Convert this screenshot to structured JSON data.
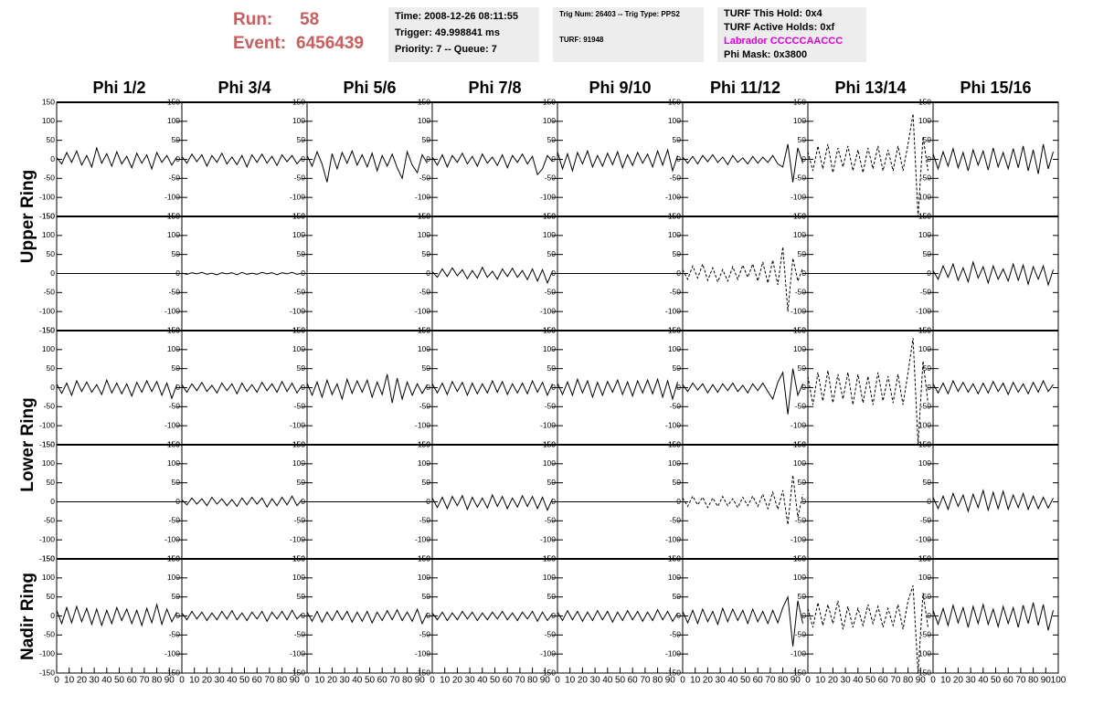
{
  "header": {
    "run_label": "Run:",
    "run": 58,
    "event_label": "Event:",
    "event": 6456439,
    "info_boxes": [
      [
        "Time: 2008-12-26 08:11:55",
        "Trigger: 49.998841 ms",
        "Priority: 7 -- Queue: 7"
      ],
      [
        "Trig Num: 26403 -- Trig Type: PPS2",
        "TURF: 91948"
      ],
      [
        "TURF This Hold: 0x4",
        "TURF Active Holds: 0xf",
        "Labrador CCCCCAACCC",
        "Phi Mask: 0x3800"
      ]
    ]
  },
  "columns": [
    "Phi 1/2",
    "Phi 3/4",
    "Phi 5/6",
    "Phi 7/8",
    "Phi 9/10",
    "Phi 11/12",
    "Phi 13/14",
    "Phi 15/16"
  ],
  "rows": [
    "Upper Ring",
    "Lower Ring",
    "Nadir Ring"
  ],
  "chart_data": {
    "type": "line",
    "color": "#000000",
    "xlim": [
      0,
      100
    ],
    "ylim": [
      -150,
      150
    ],
    "xticks": [
      0,
      10,
      20,
      30,
      40,
      50,
      60,
      70,
      80,
      90,
      100
    ],
    "yticks": [
      -150,
      -100,
      -50,
      0,
      50,
      100,
      150
    ],
    "x": [
      0,
      4,
      8,
      12,
      16,
      20,
      24,
      28,
      32,
      36,
      40,
      44,
      48,
      52,
      56,
      60,
      64,
      68,
      72,
      76,
      80,
      84,
      88,
      92,
      96
    ],
    "panels": [
      {
        "line_style": "solid",
        "values": [
          5,
          -12,
          18,
          -8,
          22,
          -15,
          10,
          -20,
          30,
          -10,
          15,
          -18,
          20,
          -12,
          8,
          -22,
          16,
          -10,
          12,
          -25,
          18,
          -8,
          10,
          -15,
          6
        ]
      },
      {
        "line_style": "solid",
        "values": [
          8,
          -10,
          14,
          -6,
          12,
          -18,
          10,
          -8,
          16,
          -12,
          6,
          -14,
          10,
          -20,
          12,
          -8,
          14,
          -10,
          8,
          -16,
          12,
          -6,
          10,
          -12,
          4
        ]
      },
      {
        "line_style": "solid",
        "values": [
          10,
          -18,
          20,
          -12,
          -60,
          15,
          -25,
          18,
          -10,
          22,
          -15,
          12,
          -20,
          16,
          -30,
          10,
          -18,
          14,
          -22,
          -50,
          20,
          -15,
          -35,
          12,
          -10
        ]
      },
      {
        "line_style": "solid",
        "values": [
          6,
          -15,
          12,
          -20,
          10,
          -8,
          16,
          -12,
          8,
          -18,
          14,
          -10,
          6,
          -16,
          12,
          -22,
          10,
          -8,
          14,
          -12,
          8,
          -40,
          -25,
          10,
          -6
        ]
      },
      {
        "line_style": "solid",
        "values": [
          20,
          -25,
          15,
          -30,
          18,
          -12,
          22,
          -20,
          10,
          -18,
          16,
          -14,
          20,
          -22,
          12,
          -16,
          18,
          -10,
          14,
          -20,
          22,
          -15,
          25,
          -30,
          10
        ]
      },
      {
        "line_style": "solid",
        "values": [
          6,
          -10,
          8,
          -12,
          10,
          -6,
          12,
          -8,
          6,
          -14,
          10,
          -8,
          4,
          -12,
          8,
          -10,
          6,
          -8,
          10,
          -12,
          -20,
          40,
          -60,
          30,
          -10
        ]
      },
      {
        "line_style": "dashed",
        "values": [
          20,
          -30,
          35,
          -25,
          40,
          -35,
          30,
          -20,
          35,
          -30,
          25,
          -35,
          30,
          -25,
          35,
          -30,
          25,
          -30,
          35,
          -30,
          40,
          120,
          -150,
          60,
          -30
        ]
      },
      {
        "line_style": "solid",
        "values": [
          15,
          -25,
          20,
          -18,
          28,
          -22,
          18,
          -30,
          25,
          -15,
          22,
          -28,
          30,
          -20,
          18,
          -25,
          28,
          -22,
          35,
          -30,
          25,
          -38,
          40,
          -25,
          20
        ]
      },
      {
        "line_style": "solid",
        "values": [
          0,
          0,
          0,
          0,
          0,
          0,
          0,
          0,
          0,
          0,
          0,
          0,
          0,
          0,
          0,
          0,
          0,
          0,
          0,
          0,
          0,
          0,
          0,
          0,
          0
        ]
      },
      {
        "line_style": "solid",
        "values": [
          1,
          -2,
          2,
          -1,
          3,
          -2,
          1,
          -3,
          2,
          -1,
          2,
          -3,
          3,
          -2,
          1,
          -2,
          3,
          -1,
          2,
          -3,
          2,
          -1,
          3,
          -2,
          1
        ]
      },
      {
        "line_style": "solid",
        "values": [
          0,
          0,
          0,
          0,
          0,
          0,
          0,
          0,
          0,
          0,
          0,
          0,
          0,
          0,
          0,
          0,
          0,
          0,
          0,
          0,
          0,
          0,
          0,
          0,
          0
        ]
      },
      {
        "line_style": "solid",
        "values": [
          5,
          -10,
          12,
          -8,
          15,
          -6,
          10,
          -14,
          8,
          -12,
          16,
          -10,
          6,
          -15,
          12,
          -8,
          14,
          -10,
          8,
          -16,
          12,
          -20,
          10,
          -25,
          6
        ]
      },
      {
        "line_style": "solid",
        "values": [
          0,
          0,
          0,
          0,
          0,
          0,
          0,
          0,
          0,
          0,
          0,
          0,
          0,
          0,
          0,
          0,
          0,
          0,
          0,
          0,
          0,
          0,
          0,
          0,
          0
        ]
      },
      {
        "line_style": "dashed",
        "values": [
          10,
          -15,
          20,
          -12,
          25,
          -18,
          15,
          -22,
          10,
          -20,
          18,
          -15,
          22,
          -10,
          25,
          -20,
          30,
          -25,
          35,
          -30,
          70,
          -100,
          40,
          -20,
          15
        ]
      },
      {
        "line_style": "solid",
        "values": [
          0,
          0,
          0,
          0,
          0,
          0,
          0,
          0,
          0,
          0,
          0,
          0,
          0,
          0,
          0,
          0,
          0,
          0,
          0,
          0,
          0,
          0,
          0,
          0,
          0
        ]
      },
      {
        "line_style": "solid",
        "values": [
          8,
          -15,
          20,
          -10,
          25,
          -18,
          15,
          -22,
          30,
          -12,
          18,
          -25,
          20,
          -15,
          12,
          -20,
          25,
          -18,
          22,
          -28,
          18,
          -15,
          20,
          -30,
          10
        ]
      },
      {
        "line_style": "solid",
        "values": [
          10,
          -15,
          12,
          -20,
          18,
          -10,
          15,
          -12,
          8,
          -18,
          20,
          -14,
          12,
          -16,
          10,
          -22,
          14,
          -12,
          18,
          -10,
          16,
          -20,
          12,
          -28,
          8
        ]
      },
      {
        "line_style": "solid",
        "values": [
          8,
          -12,
          10,
          -8,
          14,
          -10,
          6,
          -14,
          12,
          -8,
          10,
          -16,
          12,
          -10,
          8,
          -12,
          14,
          -8,
          10,
          -12,
          16,
          -10,
          12,
          -14,
          6
        ]
      },
      {
        "line_style": "solid",
        "values": [
          12,
          -20,
          15,
          -25,
          20,
          -18,
          10,
          -30,
          22,
          -15,
          18,
          -12,
          20,
          -25,
          15,
          -18,
          35,
          -40,
          25,
          -30,
          15,
          -20,
          10,
          -15,
          8
        ]
      },
      {
        "line_style": "solid",
        "values": [
          10,
          -14,
          12,
          -18,
          16,
          -10,
          14,
          -20,
          12,
          -16,
          10,
          -14,
          18,
          -12,
          16,
          -18,
          10,
          -14,
          12,
          -16,
          18,
          -12,
          14,
          -20,
          10
        ]
      },
      {
        "line_style": "solid",
        "values": [
          12,
          -18,
          15,
          -20,
          22,
          -14,
          18,
          -25,
          14,
          -20,
          16,
          -12,
          20,
          -18,
          15,
          -22,
          18,
          -14,
          20,
          -16,
          22,
          -25,
          18,
          -30,
          15
        ]
      },
      {
        "line_style": "solid",
        "values": [
          8,
          -10,
          12,
          -6,
          10,
          -14,
          8,
          -12,
          10,
          -8,
          12,
          -10,
          6,
          -14,
          10,
          -8,
          12,
          -10,
          -30,
          14,
          40,
          -70,
          50,
          -20,
          10
        ]
      },
      {
        "line_style": "dashed",
        "values": [
          30,
          -45,
          40,
          -35,
          45,
          -40,
          35,
          -30,
          40,
          -45,
          35,
          -40,
          30,
          -45,
          40,
          -35,
          30,
          -40,
          35,
          -45,
          40,
          130,
          -150,
          70,
          -40
        ]
      },
      {
        "line_style": "solid",
        "values": [
          10,
          -14,
          12,
          -16,
          18,
          -10,
          14,
          -12,
          10,
          -16,
          12,
          -14,
          16,
          -10,
          12,
          -18,
          14,
          -12,
          10,
          -16,
          14,
          -12,
          18,
          -10,
          8
        ]
      },
      {
        "line_style": "solid",
        "values": [
          0,
          0,
          0,
          0,
          0,
          0,
          0,
          0,
          0,
          0,
          0,
          0,
          0,
          0,
          0,
          0,
          0,
          0,
          0,
          0,
          0,
          0,
          0,
          0,
          0
        ]
      },
      {
        "line_style": "solid",
        "values": [
          5,
          -8,
          10,
          -6,
          8,
          -10,
          12,
          -6,
          8,
          -10,
          6,
          -12,
          10,
          -8,
          12,
          -6,
          10,
          -14,
          8,
          -10,
          12,
          -8,
          15,
          -10,
          6
        ]
      },
      {
        "line_style": "solid",
        "values": [
          0,
          0,
          0,
          0,
          0,
          0,
          0,
          0,
          0,
          0,
          0,
          0,
          0,
          0,
          0,
          0,
          0,
          0,
          0,
          0,
          0,
          0,
          0,
          0,
          0
        ]
      },
      {
        "line_style": "solid",
        "values": [
          10,
          -15,
          12,
          -18,
          14,
          -10,
          16,
          -20,
          12,
          -14,
          10,
          -16,
          18,
          -12,
          14,
          -18,
          10,
          -14,
          16,
          -12,
          14,
          -18,
          12,
          -22,
          8
        ]
      },
      {
        "line_style": "solid",
        "values": [
          0,
          0,
          0,
          0,
          0,
          0,
          0,
          0,
          0,
          0,
          0,
          0,
          0,
          0,
          0,
          0,
          0,
          0,
          0,
          0,
          0,
          0,
          0,
          0,
          0
        ]
      },
      {
        "line_style": "dashed",
        "values": [
          10,
          -12,
          15,
          -8,
          12,
          -15,
          10,
          -12,
          14,
          -10,
          8,
          -15,
          12,
          -10,
          15,
          -12,
          20,
          -18,
          25,
          -20,
          30,
          -60,
          70,
          -40,
          20
        ]
      },
      {
        "line_style": "solid",
        "values": [
          0,
          0,
          0,
          0,
          0,
          0,
          0,
          0,
          0,
          0,
          0,
          0,
          0,
          0,
          0,
          0,
          0,
          0,
          0,
          0,
          0,
          0,
          0,
          0,
          0
        ]
      },
      {
        "line_style": "solid",
        "values": [
          12,
          -18,
          15,
          -20,
          22,
          -12,
          18,
          -25,
          20,
          -15,
          30,
          -22,
          25,
          -18,
          28,
          -20,
          18,
          -15,
          22,
          -20,
          15,
          -18,
          12,
          -16,
          10
        ]
      },
      {
        "line_style": "solid",
        "values": [
          15,
          -20,
          22,
          -18,
          25,
          -15,
          20,
          -22,
          18,
          -25,
          15,
          -20,
          22,
          -12,
          18,
          -20,
          15,
          -25,
          20,
          -18,
          30,
          -22,
          18,
          -15,
          10
        ]
      },
      {
        "line_style": "solid",
        "values": [
          8,
          -10,
          12,
          -8,
          10,
          -12,
          8,
          -10,
          12,
          -8,
          14,
          -10,
          8,
          -12,
          10,
          -8,
          12,
          -14,
          10,
          -8,
          12,
          -10,
          15,
          -8,
          6
        ]
      },
      {
        "line_style": "solid",
        "values": [
          10,
          -14,
          12,
          -16,
          10,
          -12,
          14,
          -10,
          12,
          -16,
          10,
          -14,
          12,
          -18,
          10,
          -12,
          14,
          -10,
          16,
          -12,
          10,
          -14,
          18,
          -20,
          8
        ]
      },
      {
        "line_style": "solid",
        "values": [
          8,
          -10,
          10,
          -12,
          8,
          -10,
          12,
          -8,
          10,
          -12,
          8,
          -10,
          10,
          -8,
          12,
          -10,
          8,
          -12,
          10,
          -8,
          12,
          -14,
          10,
          -12,
          6
        ]
      },
      {
        "line_style": "solid",
        "values": [
          10,
          -12,
          14,
          -10,
          12,
          -14,
          10,
          -12,
          14,
          -10,
          12,
          -16,
          10,
          -12,
          14,
          -10,
          12,
          -14,
          10,
          -12,
          16,
          -10,
          12,
          -14,
          8
        ]
      },
      {
        "line_style": "solid",
        "values": [
          12,
          -18,
          15,
          -20,
          18,
          -15,
          12,
          -22,
          20,
          -15,
          18,
          -12,
          15,
          -20,
          18,
          -15,
          12,
          -20,
          15,
          -18,
          22,
          50,
          -80,
          40,
          -20
        ]
      },
      {
        "line_style": "dashed",
        "values": [
          20,
          -30,
          35,
          -25,
          30,
          -20,
          40,
          -35,
          25,
          -30,
          20,
          -25,
          30,
          -20,
          25,
          -30,
          20,
          -25,
          30,
          -35,
          40,
          80,
          -150,
          60,
          -30
        ]
      },
      {
        "line_style": "solid",
        "values": [
          15,
          -22,
          20,
          -25,
          28,
          -18,
          22,
          -30,
          25,
          -20,
          30,
          -22,
          18,
          -28,
          25,
          -20,
          22,
          -30,
          28,
          -20,
          35,
          -25,
          30,
          -38,
          15
        ]
      }
    ]
  }
}
